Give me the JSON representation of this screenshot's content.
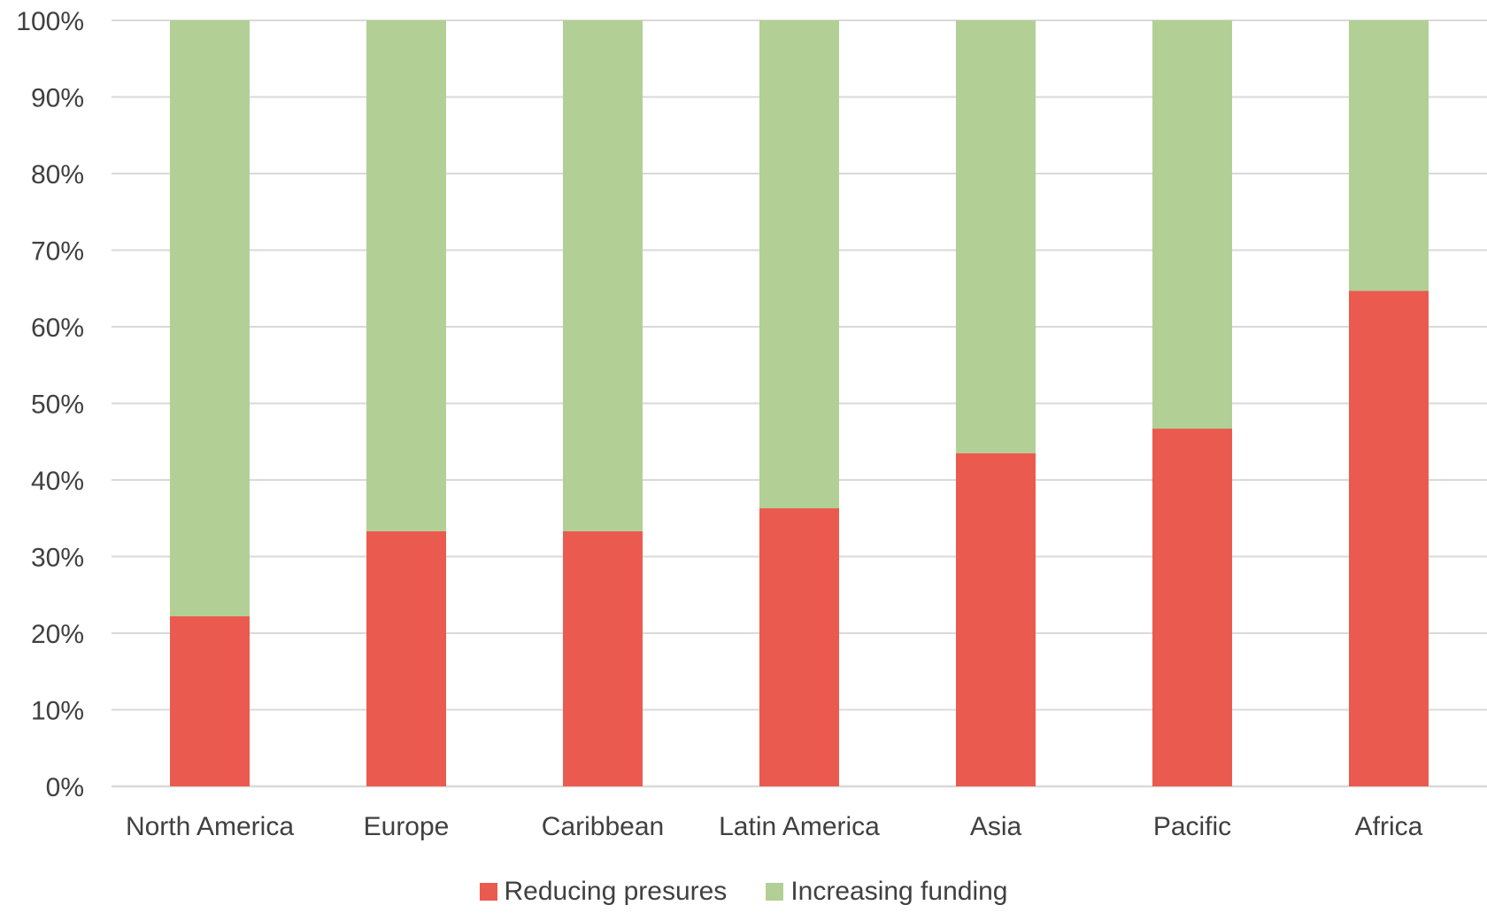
{
  "chart_data": {
    "type": "bar",
    "stacked": true,
    "percent_stacked": true,
    "categories": [
      "North America",
      "Europe",
      "Caribbean",
      "Latin America",
      "Asia",
      "Pacific",
      "Africa"
    ],
    "series": [
      {
        "name": "Reducing presures",
        "color": "#EB5A4E",
        "values": [
          22.2,
          33.3,
          33.3,
          36.3,
          43.5,
          46.7,
          64.7
        ]
      },
      {
        "name": "Increasing funding",
        "color": "#B2CF95",
        "values": [
          77.8,
          66.7,
          66.7,
          63.7,
          56.5,
          53.3,
          35.3
        ]
      }
    ],
    "ylim": [
      0,
      100
    ],
    "yticks": [
      "0%",
      "10%",
      "20%",
      "30%",
      "40%",
      "50%",
      "60%",
      "70%",
      "80%",
      "90%",
      "100%"
    ],
    "grid": true,
    "gridline_color": "#D9D9D9",
    "legend_position": "bottom",
    "title": "",
    "xlabel": "",
    "ylabel": ""
  }
}
